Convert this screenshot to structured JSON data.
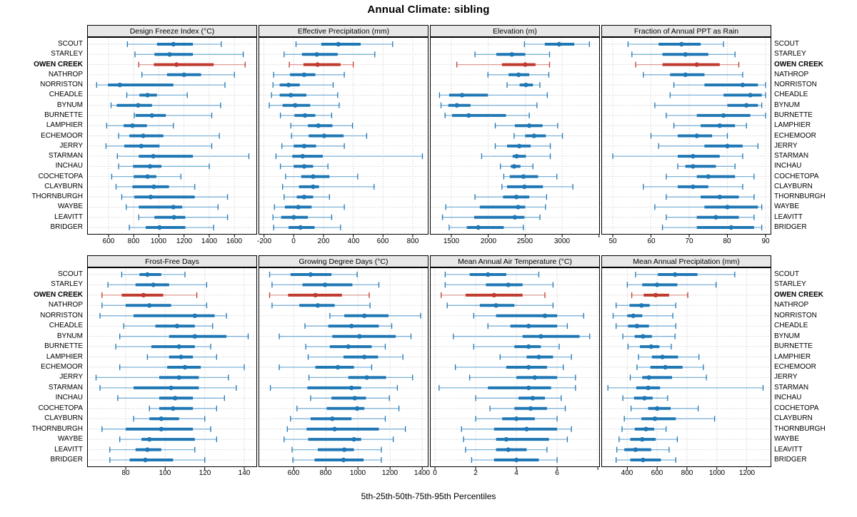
{
  "title": "Annual Climate: sibling",
  "caption": "5th-25th-50th-75th-95th Percentiles",
  "highlight_site": "OWEN CREEK",
  "sites": [
    "SCOUT",
    "STARLEY",
    "OWEN CREEK",
    "NATHROP",
    "NORRISTON",
    "CHEADLE",
    "BYNUM",
    "BURNETTE",
    "LAMPHIER",
    "ECHEMOOR",
    "JERRY",
    "STARMAN",
    "INCHAU",
    "COCHETOPA",
    "CLAYBURN",
    "THORNBURGH",
    "WAYBE",
    "LEAVITT",
    "BRIDGER"
  ],
  "colors": {
    "bar_blue": "#1f77b4",
    "whisker_blue": "#7fb2d7",
    "bar_red": "#bf3a2f",
    "whisker_red": "#de9a94",
    "grid": "#bcbcbc",
    "strip_bg": "#e8e8e8",
    "panel_border": "#000000"
  },
  "chart_data": {
    "type": "error-bar",
    "orientation": "horizontal",
    "percentiles": [
      5,
      25,
      50,
      75,
      95
    ],
    "panels": [
      {
        "title": "Design Freeze Index (°C)",
        "grid_row": 1,
        "axis_min": 430,
        "axis_max": 1780,
        "ticks": [
          600,
          800,
          1000,
          1200,
          1400,
          1600
        ],
        "extra_ticks": [],
        "values": [
          [
            750,
            985,
            1115,
            1270,
            1495
          ],
          [
            810,
            965,
            1085,
            1270,
            1670
          ],
          [
            840,
            960,
            1140,
            1435,
            1685
          ],
          [
            865,
            1065,
            1200,
            1335,
            1600
          ],
          [
            505,
            595,
            690,
            1115,
            1525
          ],
          [
            745,
            845,
            910,
            985,
            1225
          ],
          [
            620,
            665,
            835,
            945,
            1490
          ],
          [
            805,
            815,
            945,
            1055,
            1420
          ],
          [
            585,
            720,
            790,
            905,
            1115
          ],
          [
            680,
            765,
            875,
            1035,
            1480
          ],
          [
            580,
            725,
            860,
            1005,
            1420
          ],
          [
            670,
            840,
            955,
            1270,
            1715
          ],
          [
            680,
            795,
            930,
            1020,
            1400
          ],
          [
            625,
            800,
            910,
            980,
            1175
          ],
          [
            660,
            790,
            960,
            1080,
            1285
          ],
          [
            705,
            805,
            935,
            1285,
            1545
          ],
          [
            740,
            840,
            1115,
            1185,
            1470
          ],
          [
            840,
            965,
            1120,
            1210,
            1545
          ],
          [
            765,
            895,
            1005,
            1210,
            1435
          ]
        ]
      },
      {
        "title": "Effective Precipitation (mm)",
        "grid_row": 1,
        "axis_min": -237,
        "axis_max": 906,
        "ticks": [
          -200,
          0,
          200,
          400,
          600,
          800
        ],
        "extra_ticks": [],
        "values": [
          [
            15,
            185,
            300,
            450,
            665
          ],
          [
            -65,
            55,
            155,
            295,
            545
          ],
          [
            -30,
            65,
            160,
            315,
            400
          ],
          [
            -135,
            -25,
            70,
            145,
            340
          ],
          [
            -140,
            -95,
            -35,
            40,
            265
          ],
          [
            -150,
            -95,
            -20,
            85,
            295
          ],
          [
            -165,
            -75,
            10,
            110,
            305
          ],
          [
            -90,
            5,
            75,
            145,
            255
          ],
          [
            -20,
            95,
            165,
            260,
            395
          ],
          [
            -15,
            100,
            205,
            335,
            490
          ],
          [
            -80,
            0,
            70,
            150,
            340
          ],
          [
            -120,
            -10,
            60,
            195,
            865
          ],
          [
            -90,
            0,
            70,
            130,
            230
          ],
          [
            -55,
            50,
            130,
            240,
            430
          ],
          [
            -75,
            35,
            130,
            170,
            540
          ],
          [
            -65,
            20,
            70,
            130,
            240
          ],
          [
            -130,
            -60,
            30,
            120,
            340
          ],
          [
            -140,
            -85,
            0,
            95,
            255
          ],
          [
            -135,
            -35,
            45,
            140,
            315
          ]
        ]
      },
      {
        "title": "Elevation (m)",
        "grid_row": 1,
        "axis_min": 1210,
        "axis_max": 3512,
        "ticks": [
          1500,
          2000,
          2500,
          3000
        ],
        "extra_ticks": [
          3500
        ],
        "values": [
          [
            2490,
            2765,
            2960,
            3165,
            3370
          ],
          [
            1820,
            2110,
            2320,
            2500,
            2830
          ],
          [
            1575,
            2185,
            2500,
            2640,
            2830
          ],
          [
            1995,
            2275,
            2410,
            2555,
            2820
          ],
          [
            2255,
            2425,
            2510,
            2605,
            2700
          ],
          [
            1340,
            1470,
            1645,
            1995,
            2800
          ],
          [
            1360,
            1460,
            1575,
            1760,
            2660
          ],
          [
            1415,
            1510,
            1735,
            2240,
            2555
          ],
          [
            2095,
            2360,
            2555,
            2735,
            2940
          ],
          [
            2350,
            2500,
            2620,
            2780,
            3005
          ],
          [
            2095,
            2255,
            2420,
            2575,
            2840
          ],
          [
            1910,
            2330,
            2385,
            2510,
            2840
          ],
          [
            2165,
            2305,
            2350,
            2435,
            2605
          ],
          [
            2210,
            2290,
            2475,
            2675,
            2930
          ],
          [
            2185,
            2255,
            2490,
            2740,
            3145
          ],
          [
            1820,
            2200,
            2380,
            2555,
            2790
          ],
          [
            1425,
            1885,
            2405,
            2500,
            2775
          ],
          [
            1380,
            1810,
            2360,
            2490,
            2700
          ],
          [
            1470,
            1710,
            1865,
            2210,
            2475
          ]
        ]
      },
      {
        "title": "Fraction of Annual PPT as Rain",
        "grid_row": 1,
        "axis_min": 47,
        "axis_max": 91.5,
        "ticks": [
          50,
          60,
          70,
          80,
          90
        ],
        "extra_ticks": [],
        "values": [
          [
            54,
            62,
            68,
            73,
            79
          ],
          [
            55,
            63,
            69,
            75,
            82
          ],
          [
            56,
            63,
            72,
            78,
            83
          ],
          [
            58,
            65,
            69,
            74,
            84
          ],
          [
            66,
            74,
            84,
            88,
            90
          ],
          [
            65,
            79,
            86,
            89,
            90
          ],
          [
            61,
            80,
            85,
            88,
            89
          ],
          [
            64,
            72,
            79,
            86,
            90
          ],
          [
            66,
            73,
            78,
            82,
            85
          ],
          [
            60,
            67,
            72,
            76,
            80
          ],
          [
            62,
            74,
            80,
            84,
            88
          ],
          [
            50,
            67,
            71,
            78,
            84
          ],
          [
            67,
            69,
            71,
            77,
            82
          ],
          [
            64,
            72,
            75,
            82,
            87
          ],
          [
            58,
            67,
            71,
            75,
            84
          ],
          [
            64,
            73,
            78,
            83,
            87
          ],
          [
            61,
            74,
            80,
            88,
            89
          ],
          [
            64,
            72,
            77,
            83,
            87
          ],
          [
            63,
            72,
            81,
            87,
            89
          ]
        ]
      },
      {
        "title": "Frost-Free Days",
        "grid_row": 2,
        "axis_min": 60.5,
        "axis_max": 146.5,
        "ticks": [
          80,
          100,
          120,
          140
        ],
        "extra_ticks": [],
        "values": [
          [
            78,
            87,
            91,
            98,
            110
          ],
          [
            71,
            85,
            94,
            102,
            121
          ],
          [
            68,
            78,
            89,
            99,
            116
          ],
          [
            68,
            80,
            92,
            103,
            121
          ],
          [
            67,
            84,
            115,
            125,
            131
          ],
          [
            79,
            95,
            106,
            115,
            124
          ],
          [
            77,
            102,
            115,
            131,
            142
          ],
          [
            75,
            93,
            107,
            115,
            123
          ],
          [
            91,
            102,
            108,
            114,
            126
          ],
          [
            77,
            101,
            110,
            118,
            140
          ],
          [
            65,
            97,
            107,
            117,
            132
          ],
          [
            67,
            84,
            103,
            117,
            136
          ],
          [
            76,
            97,
            105,
            114,
            130
          ],
          [
            92,
            97,
            104,
            114,
            126
          ],
          [
            84,
            92,
            98,
            107,
            120
          ],
          [
            68,
            80,
            98,
            114,
            123
          ],
          [
            77,
            88,
            92,
            115,
            126
          ],
          [
            72,
            85,
            91,
            98,
            115
          ],
          [
            72,
            82,
            90,
            104,
            120
          ]
        ]
      },
      {
        "title": "Growing Degree Days (°C)",
        "grid_row": 2,
        "axis_min": 381,
        "axis_max": 1439,
        "ticks": [
          600,
          800,
          1000,
          1200,
          1400
        ],
        "extra_ticks": [],
        "values": [
          [
            450,
            580,
            705,
            835,
            995
          ],
          [
            465,
            655,
            795,
            965,
            1130
          ],
          [
            450,
            565,
            735,
            900,
            1070
          ],
          [
            465,
            635,
            750,
            855,
            1075
          ],
          [
            825,
            915,
            1040,
            1190,
            1390
          ],
          [
            670,
            815,
            960,
            1130,
            1210
          ],
          [
            510,
            840,
            1010,
            1235,
            1330
          ],
          [
            675,
            825,
            940,
            1085,
            1170
          ],
          [
            690,
            910,
            1040,
            1125,
            1280
          ],
          [
            510,
            735,
            875,
            975,
            1085
          ],
          [
            695,
            940,
            1055,
            1175,
            1340
          ],
          [
            455,
            685,
            960,
            1020,
            1245
          ],
          [
            705,
            835,
            980,
            1050,
            1195
          ],
          [
            620,
            805,
            995,
            1040,
            1255
          ],
          [
            580,
            705,
            840,
            960,
            1170
          ],
          [
            560,
            680,
            855,
            1130,
            1295
          ],
          [
            540,
            690,
            975,
            1020,
            1220
          ],
          [
            590,
            750,
            915,
            975,
            1145
          ],
          [
            595,
            730,
            910,
            1035,
            1145
          ]
        ]
      },
      {
        "title": "Mean Annual Air Temperature (°C)",
        "grid_row": 2,
        "axis_min": -0.25,
        "axis_max": 8.1,
        "ticks": [
          0,
          2,
          4,
          6
        ],
        "extra_ticks": [
          8
        ],
        "values": [
          [
            0.5,
            1.7,
            2.6,
            3.5,
            5.1
          ],
          [
            0.5,
            2.5,
            3.6,
            4.3,
            5.8
          ],
          [
            0.3,
            1.5,
            2.9,
            4.3,
            5.4
          ],
          [
            0.6,
            2.2,
            3.0,
            3.9,
            5.8
          ],
          [
            1.9,
            3.0,
            5.4,
            6.0,
            7.3
          ],
          [
            2.6,
            3.7,
            4.6,
            6.0,
            6.5
          ],
          [
            0.9,
            4.3,
            5.2,
            7.1,
            7.6
          ],
          [
            1.9,
            3.9,
            4.6,
            5.2,
            6.1
          ],
          [
            3.2,
            4.5,
            5.1,
            5.8,
            6.7
          ],
          [
            1.0,
            3.5,
            4.6,
            5.5,
            6.3
          ],
          [
            1.7,
            4.0,
            4.9,
            6.0,
            6.9
          ],
          [
            0.2,
            2.6,
            4.6,
            5.7,
            6.9
          ],
          [
            2.0,
            4.1,
            4.8,
            5.4,
            6.2
          ],
          [
            2.7,
            3.9,
            4.7,
            5.5,
            6.4
          ],
          [
            2.0,
            3.3,
            4.0,
            4.9,
            6.0
          ],
          [
            1.3,
            2.9,
            4.5,
            6.0,
            6.7
          ],
          [
            1.4,
            3.0,
            3.5,
            5.6,
            6.5
          ],
          [
            1.5,
            3.0,
            3.6,
            4.5,
            5.5
          ],
          [
            1.8,
            2.9,
            4.0,
            5.1,
            6.0
          ]
        ]
      },
      {
        "title": "Mean Annual Precipitation (mm)",
        "grid_row": 2,
        "axis_min": 226,
        "axis_max": 1365,
        "ticks": [
          400,
          600,
          800,
          1000,
          1200
        ],
        "extra_ticks": [],
        "values": [
          [
            455,
            605,
            720,
            870,
            1120
          ],
          [
            400,
            500,
            600,
            735,
            995
          ],
          [
            430,
            510,
            590,
            680,
            805
          ],
          [
            325,
            415,
            495,
            550,
            725
          ],
          [
            305,
            400,
            440,
            500,
            705
          ],
          [
            325,
            405,
            465,
            545,
            725
          ],
          [
            370,
            450,
            505,
            565,
            720
          ],
          [
            405,
            485,
            560,
            615,
            695
          ],
          [
            475,
            565,
            635,
            740,
            880
          ],
          [
            465,
            555,
            655,
            770,
            910
          ],
          [
            420,
            500,
            545,
            700,
            930
          ],
          [
            270,
            460,
            540,
            620,
            1310
          ],
          [
            370,
            445,
            515,
            570,
            670
          ],
          [
            425,
            540,
            600,
            690,
            875
          ],
          [
            380,
            495,
            585,
            725,
            985
          ],
          [
            365,
            450,
            525,
            580,
            660
          ],
          [
            345,
            420,
            500,
            590,
            735
          ],
          [
            330,
            380,
            455,
            560,
            680
          ],
          [
            325,
            420,
            505,
            625,
            725
          ]
        ]
      }
    ]
  }
}
